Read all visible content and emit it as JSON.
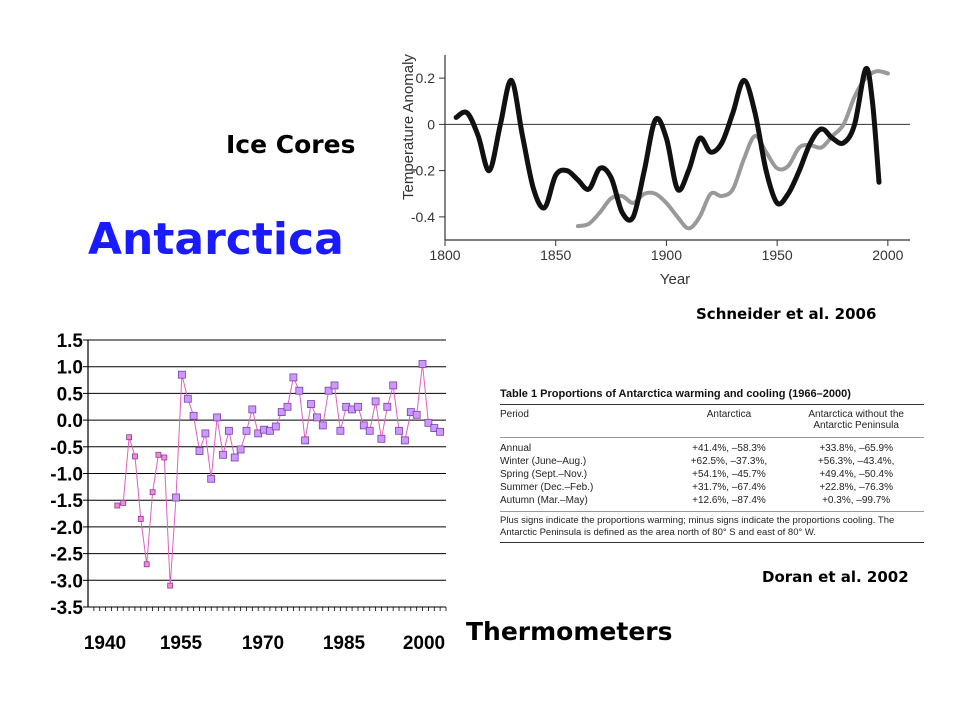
{
  "title": "Antarctica",
  "ice_label": "Ice Cores",
  "thermo_label": "Thermometers",
  "citation_top": "Schneider et al. 2006",
  "citation_bottom": "Doran et al. 2002",
  "colors": {
    "title": "#1a1aff",
    "marker_fill": "#cc99ff",
    "marker_first": "#ff88cc",
    "thermo_line": "#e060c0"
  },
  "chart_data": [
    {
      "type": "line",
      "xlabel": "Year",
      "ylabel": "Temperature Anomaly (°C)",
      "xlim": [
        1800,
        2010
      ],
      "ylim": [
        -0.5,
        0.3
      ],
      "x_ticks": [
        "1800",
        "1850",
        "1900",
        "1950",
        "2000"
      ],
      "y_ticks": [
        "0.2",
        "0",
        "-0.2",
        "-0.4"
      ],
      "zero_line": true,
      "series": [
        {
          "color": "#111111",
          "x": [
            1805,
            1810,
            1815,
            1820,
            1825,
            1830,
            1835,
            1840,
            1845,
            1850,
            1855,
            1860,
            1865,
            1870,
            1875,
            1880,
            1885,
            1890,
            1895,
            1900,
            1905,
            1910,
            1915,
            1920,
            1925,
            1930,
            1935,
            1940,
            1945,
            1950,
            1955,
            1960,
            1965,
            1970,
            1975,
            1980,
            1985,
            1990,
            1993,
            1996
          ],
          "y": [
            0.03,
            0.05,
            -0.05,
            -0.2,
            0.0,
            0.19,
            -0.05,
            -0.28,
            -0.36,
            -0.22,
            -0.2,
            -0.24,
            -0.28,
            -0.19,
            -0.23,
            -0.38,
            -0.4,
            -0.2,
            0.02,
            -0.06,
            -0.28,
            -0.2,
            -0.06,
            -0.12,
            -0.08,
            0.05,
            0.19,
            0.05,
            -0.2,
            -0.34,
            -0.3,
            -0.2,
            -0.08,
            -0.02,
            -0.06,
            -0.08,
            0.0,
            0.24,
            0.1,
            -0.25
          ]
        },
        {
          "color": "#999999",
          "x": [
            1860,
            1865,
            1870,
            1875,
            1880,
            1885,
            1890,
            1895,
            1900,
            1905,
            1910,
            1915,
            1920,
            1925,
            1930,
            1935,
            1940,
            1945,
            1950,
            1955,
            1960,
            1965,
            1970,
            1975,
            1980,
            1985,
            1990,
            1995,
            2000
          ],
          "y": [
            -0.44,
            -0.43,
            -0.38,
            -0.32,
            -0.31,
            -0.34,
            -0.3,
            -0.3,
            -0.34,
            -0.4,
            -0.45,
            -0.4,
            -0.3,
            -0.31,
            -0.28,
            -0.15,
            -0.05,
            -0.12,
            -0.19,
            -0.18,
            -0.1,
            -0.09,
            -0.1,
            -0.05,
            0.0,
            0.12,
            0.2,
            0.23,
            0.22
          ]
        }
      ]
    },
    {
      "type": "line",
      "xlim": [
        1940,
        2001
      ],
      "ylim": [
        -3.5,
        1.5
      ],
      "x_ticks": [
        "1940",
        "1955",
        "1970",
        "1985",
        "2000"
      ],
      "y_ticks": [
        "1.5",
        "1.0",
        "0.5",
        "0.0",
        "-0.5",
        "-1.0",
        "-1.5",
        "-2.0",
        "-2.5",
        "-3.0",
        "-3.5"
      ],
      "grid": true,
      "series": [
        {
          "x": [
            1945,
            1946,
            1947,
            1948,
            1949,
            1950,
            1951,
            1952,
            1953,
            1954,
            1955,
            1956,
            1957,
            1958,
            1959,
            1960,
            1961,
            1962,
            1963,
            1964,
            1965,
            1966,
            1967,
            1968,
            1969,
            1970,
            1971,
            1972,
            1973,
            1974,
            1975,
            1976,
            1977,
            1978,
            1979,
            1980,
            1981,
            1982,
            1983,
            1984,
            1985,
            1986,
            1987,
            1988,
            1989,
            1990,
            1991,
            1992,
            1993,
            1994,
            1995,
            1996,
            1997,
            1998,
            1999,
            2000
          ],
          "y": [
            -1.6,
            -1.55,
            -0.32,
            -0.68,
            -1.85,
            -2.7,
            -1.35,
            -0.65,
            -0.7,
            -3.1,
            -1.45,
            0.85,
            0.4,
            0.08,
            -0.58,
            -0.25,
            -1.1,
            0.05,
            -0.65,
            -0.2,
            -0.7,
            -0.55,
            -0.2,
            0.2,
            -0.25,
            -0.18,
            -0.2,
            -0.12,
            0.15,
            0.25,
            0.8,
            0.55,
            -0.38,
            0.3,
            0.05,
            -0.1,
            0.55,
            0.65,
            -0.2,
            0.25,
            0.2,
            0.25,
            -0.1,
            -0.2,
            0.35,
            -0.35,
            0.25,
            0.65,
            -0.2,
            -0.38,
            0.15,
            0.1,
            1.05,
            -0.05,
            -0.15,
            -0.22
          ]
        }
      ]
    }
  ],
  "table": {
    "title": "Table 1 Proportions of Antarctica warming and cooling (1966–2000)",
    "headers": [
      "Period",
      "Antarctica",
      "Antarctica without the Antarctic Peninsula"
    ],
    "rows": [
      [
        "Annual",
        "+41.4%, –58.3%",
        "+33.8%, –65.9%"
      ],
      [
        "Winter (June–Aug.)",
        "+62.5%, –37.3%,",
        "+56.3%, –43.4%,"
      ],
      [
        "Spring (Sept.–Nov.)",
        "+54.1%, –45.7%",
        "+49.4%, –50.4%"
      ],
      [
        "Summer (Dec.–Feb.)",
        "+31.7%, –67.4%",
        "+22.8%, –76.3%"
      ],
      [
        "Autumn (Mar.–May)",
        "+12.6%, –87.4%",
        "+0.3%, –99.7%"
      ]
    ],
    "note": "Plus signs indicate the proportions warming; minus signs indicate the proportions cooling. The Antarctic Peninsula is defined as the area north of 80° S and east of 80° W."
  }
}
